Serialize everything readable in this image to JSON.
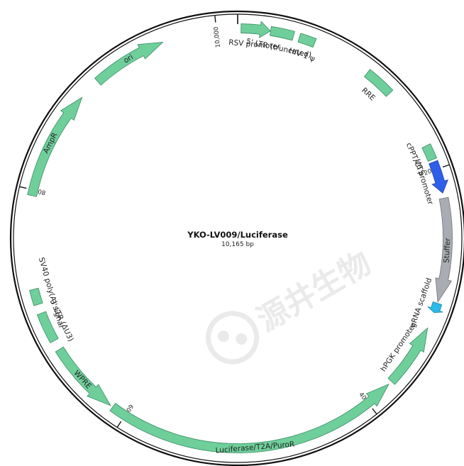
{
  "plasmid": {
    "name": "YKO-LV009/Luciferase",
    "size_label": "10,165 bp",
    "length_bp": 10165
  },
  "ticks": [
    {
      "label": "10,000",
      "bp": 10000
    },
    {
      "label": "2000",
      "bp": 2000
    },
    {
      "label": "4000",
      "bp": 4000
    },
    {
      "label": "6000",
      "bp": 6000
    },
    {
      "label": "8000",
      "bp": 8000
    }
  ],
  "watermark": "源井生物",
  "colors": {
    "feature_green": "#6fcf9b",
    "feature_stroke": "#3a8c63",
    "promoter_blue": "#2f5fe8",
    "stuffer_gray": "#a9adb3",
    "scaffold_cyan": "#2bb9e8",
    "backbone": "#111111"
  },
  "features": [
    {
      "name": "RSV promoter",
      "start": 26,
      "end": 254,
      "strand": 1,
      "color": "green"
    },
    {
      "name": "5' LTR (truncated)",
      "start": 255,
      "end": 435,
      "strand": 0,
      "color": "green"
    },
    {
      "name": "HIV-1 ψ",
      "start": 482,
      "end": 607,
      "strand": 0,
      "color": "green"
    },
    {
      "name": "RRE",
      "start": 1075,
      "end": 1308,
      "strand": 0,
      "color": "green"
    },
    {
      "name": "cPPT/CTS",
      "start": 1803,
      "end": 1920,
      "strand": 0,
      "color": "green"
    },
    {
      "name": "U6 promoter",
      "start": 1940,
      "end": 2190,
      "strand": 1,
      "color": "blue"
    },
    {
      "name": "Stuffer",
      "start": 2230,
      "end": 3040,
      "strand": 1,
      "color": "gray"
    },
    {
      "name": "gRNA scaffold",
      "start": 3050,
      "end": 3126,
      "strand": 1,
      "color": "cyan"
    },
    {
      "name": "hPGK promoter",
      "start": 3255,
      "end": 3754,
      "strand": -1,
      "color": "green"
    },
    {
      "name": "Luciferase/T2A/PuroR",
      "start": 3783,
      "end": 6114,
      "strand": -1,
      "color": "green"
    },
    {
      "name": "WPRE",
      "start": 6134,
      "end": 6722,
      "strand": -1,
      "color": "green"
    },
    {
      "name": "3' LTR (ΔU3)",
      "start": 6800,
      "end": 7034,
      "strand": 0,
      "color": "green"
    },
    {
      "name": "SV40 poly(A) signal",
      "start": 7106,
      "end": 7227,
      "strand": 0,
      "color": "green"
    },
    {
      "name": "AmpR",
      "start": 7955,
      "end": 8815,
      "strand": 1,
      "color": "green"
    },
    {
      "name": "ori",
      "start": 8986,
      "end": 9575,
      "strand": 1,
      "color": "green"
    }
  ]
}
